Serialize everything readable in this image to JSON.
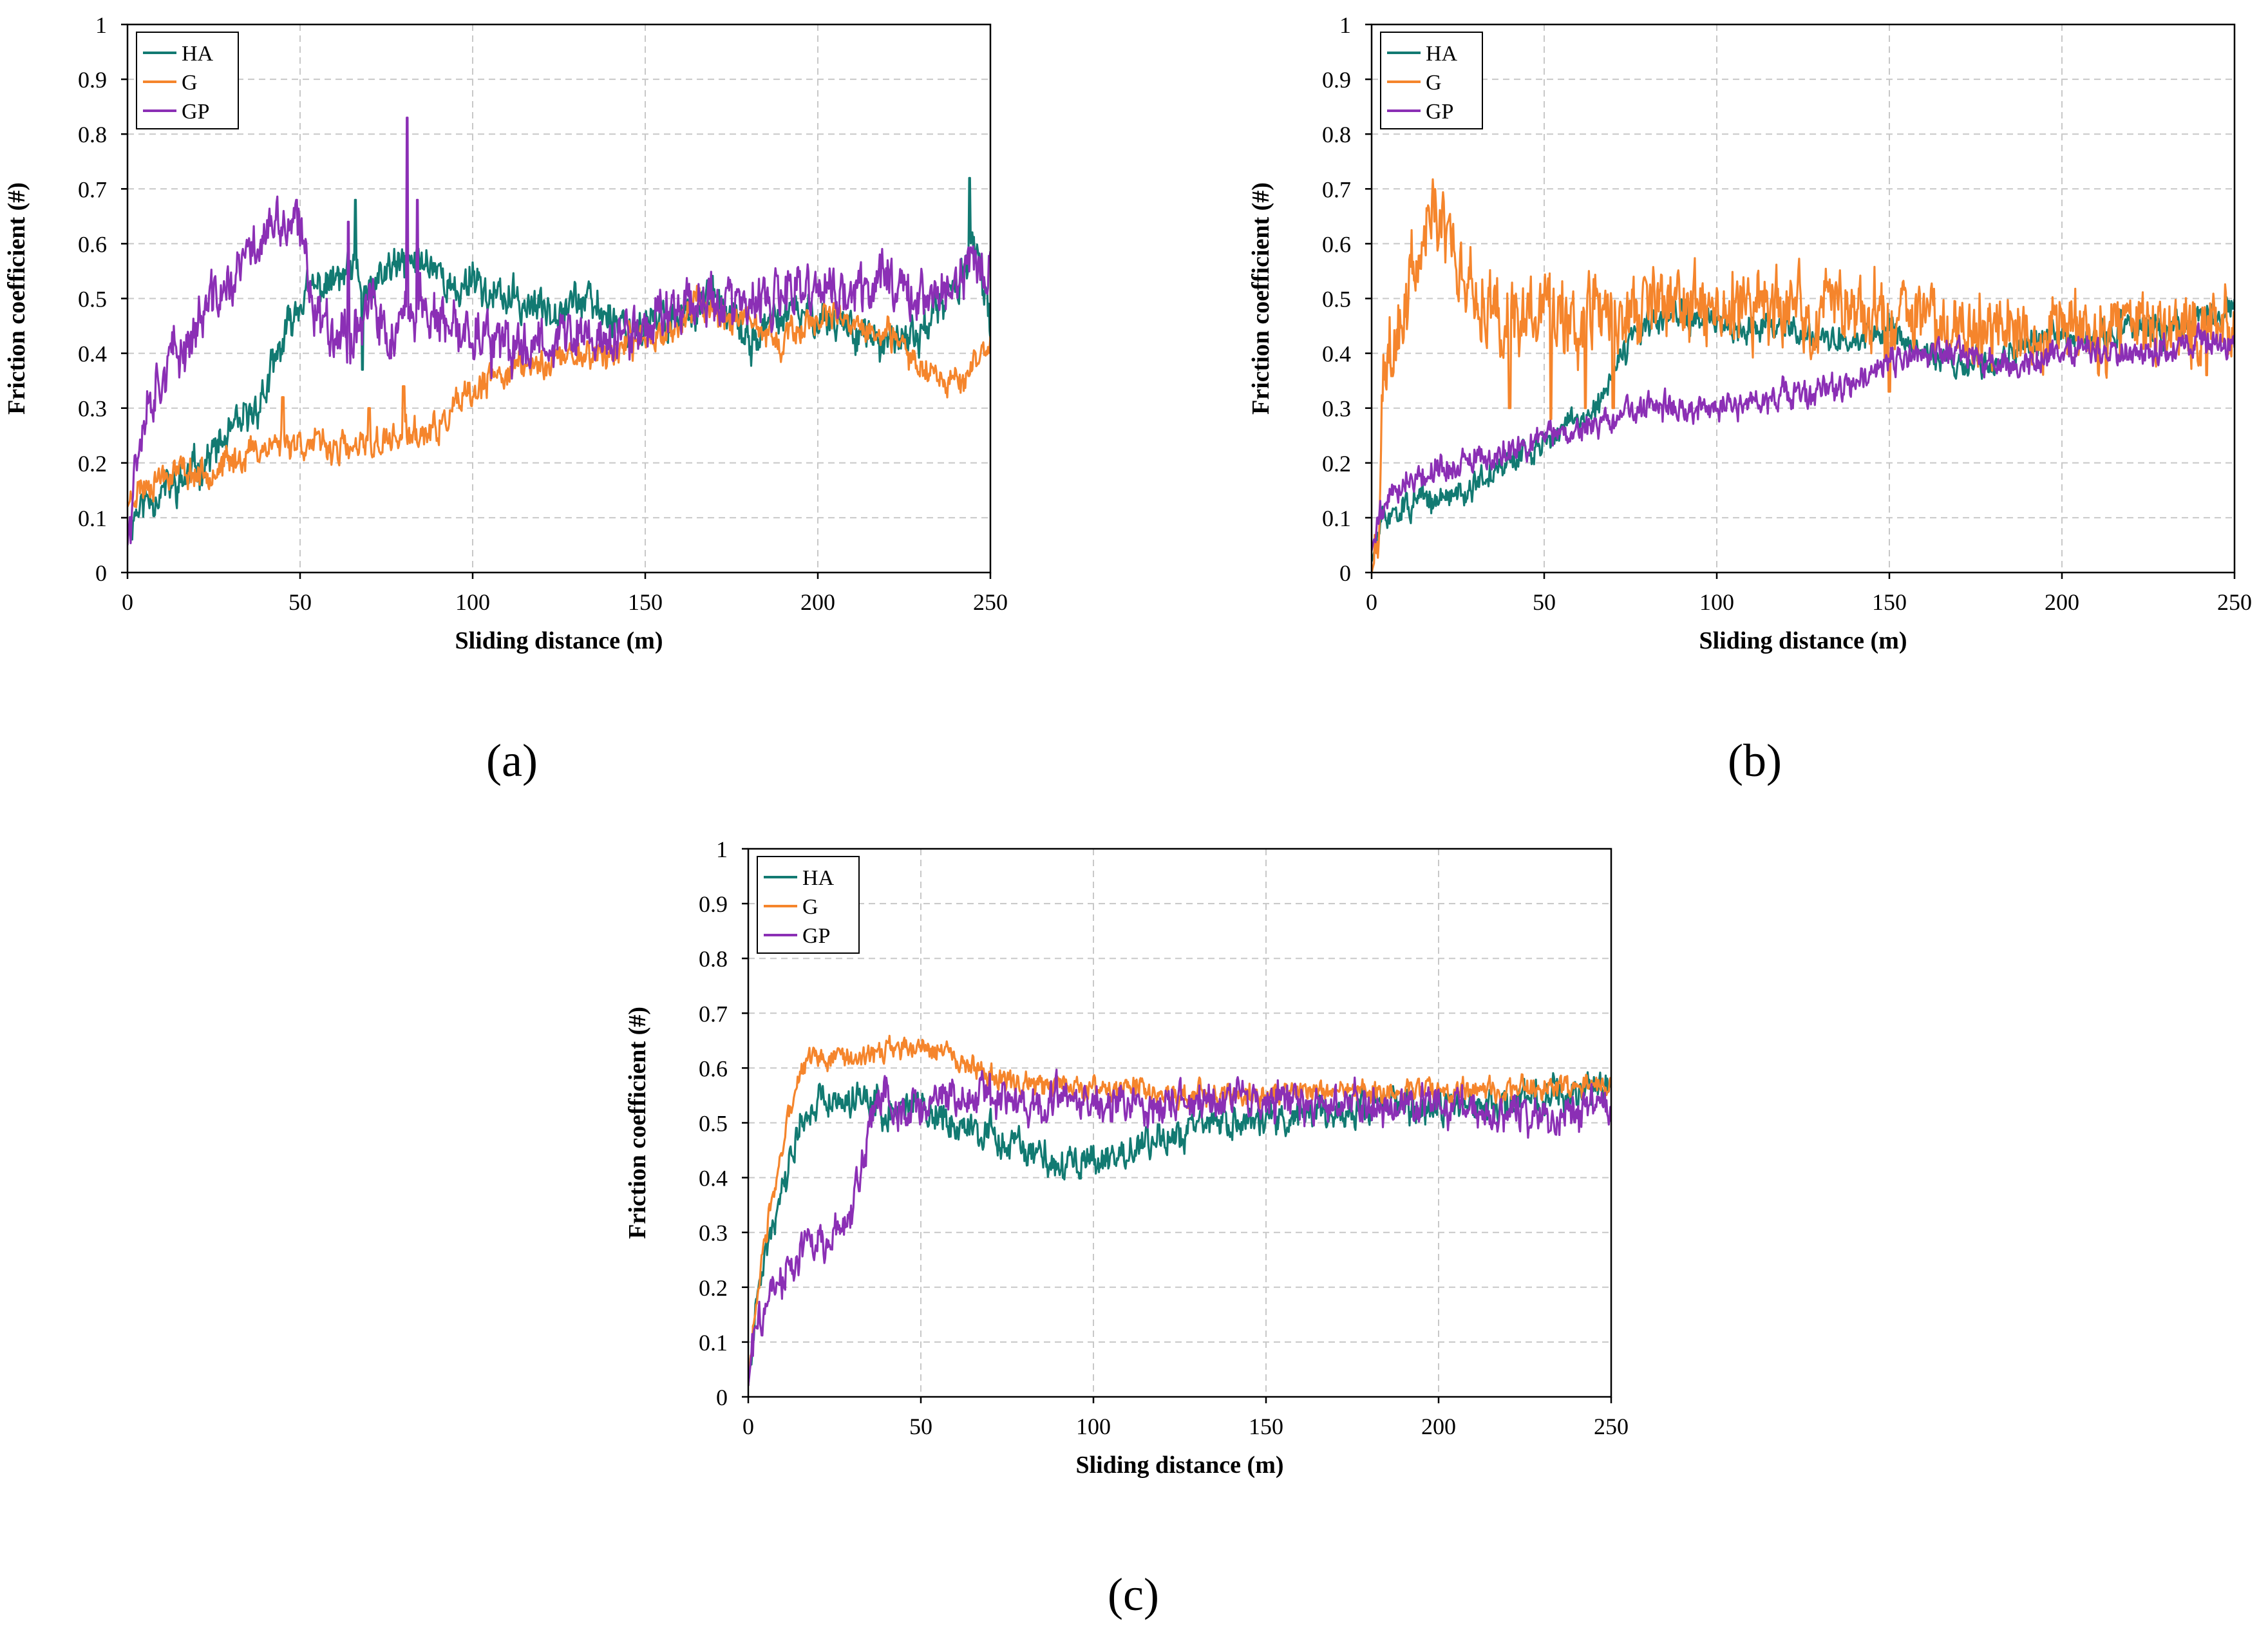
{
  "colors": {
    "HA": "#127a72",
    "G": "#f5852c",
    "GP": "#8b2fb5"
  },
  "chart_data": [
    {
      "id": "a",
      "type": "line",
      "caption": "(a)",
      "xlabel": "Sliding distance (m)",
      "ylabel": "Friction coefficient (#)",
      "xlim": [
        0,
        250
      ],
      "ylim": [
        0,
        1
      ],
      "xticks": [
        "0",
        "50",
        "100",
        "150",
        "200",
        "250"
      ],
      "yticks": [
        "0",
        "0.1",
        "0.2",
        "0.3",
        "0.4",
        "0.5",
        "0.6",
        "0.7",
        "0.8",
        "0.9",
        "1"
      ],
      "grid": true,
      "legend": "top-left",
      "series": [
        {
          "name": "HA",
          "color_key": "HA",
          "noise": 0.025,
          "seed": 11,
          "x": [
            0,
            2,
            5,
            10,
            15,
            20,
            25,
            30,
            35,
            40,
            45,
            50,
            55,
            60,
            65,
            70,
            75,
            80,
            85,
            90,
            95,
            100,
            105,
            110,
            120,
            130,
            140,
            145,
            150,
            160,
            170,
            180,
            190,
            200,
            210,
            220,
            230,
            240,
            245,
            250
          ],
          "y": [
            0.08,
            0.11,
            0.13,
            0.15,
            0.16,
            0.19,
            0.22,
            0.25,
            0.28,
            0.33,
            0.42,
            0.5,
            0.52,
            0.53,
            0.55,
            0.5,
            0.55,
            0.56,
            0.57,
            0.56,
            0.5,
            0.55,
            0.5,
            0.5,
            0.48,
            0.5,
            0.47,
            0.45,
            0.45,
            0.47,
            0.5,
            0.42,
            0.47,
            0.47,
            0.45,
            0.41,
            0.44,
            0.52,
            0.6,
            0.45
          ],
          "spikes": [
            [
              66,
              0.68
            ],
            [
              68,
              0.37
            ],
            [
              244,
              0.72
            ]
          ]
        },
        {
          "name": "G",
          "color_key": "G",
          "noise": 0.02,
          "seed": 23,
          "x": [
            0,
            2,
            5,
            10,
            15,
            20,
            25,
            30,
            35,
            40,
            45,
            50,
            55,
            60,
            65,
            70,
            75,
            80,
            85,
            90,
            95,
            100,
            105,
            110,
            120,
            130,
            140,
            150,
            160,
            165,
            170,
            180,
            190,
            200,
            210,
            220,
            230,
            240,
            245,
            250
          ],
          "y": [
            0.12,
            0.15,
            0.16,
            0.18,
            0.19,
            0.18,
            0.19,
            0.2,
            0.22,
            0.23,
            0.24,
            0.24,
            0.23,
            0.23,
            0.22,
            0.23,
            0.24,
            0.25,
            0.25,
            0.26,
            0.3,
            0.32,
            0.35,
            0.37,
            0.38,
            0.4,
            0.4,
            0.43,
            0.45,
            0.5,
            0.48,
            0.45,
            0.42,
            0.47,
            0.45,
            0.43,
            0.38,
            0.35,
            0.37,
            0.42
          ],
          "spikes": [
            [
              45,
              0.32
            ],
            [
              70,
              0.3
            ],
            [
              80,
              0.34
            ]
          ]
        },
        {
          "name": "GP",
          "color_key": "GP",
          "noise": 0.035,
          "seed": 37,
          "x": [
            0,
            2,
            5,
            10,
            15,
            20,
            25,
            30,
            35,
            40,
            45,
            50,
            55,
            60,
            65,
            70,
            75,
            80,
            85,
            90,
            95,
            100,
            105,
            110,
            120,
            130,
            140,
            150,
            160,
            170,
            180,
            190,
            200,
            210,
            220,
            230,
            240,
            245,
            250
          ],
          "y": [
            0.05,
            0.2,
            0.3,
            0.37,
            0.4,
            0.45,
            0.5,
            0.52,
            0.58,
            0.62,
            0.63,
            0.62,
            0.47,
            0.45,
            0.43,
            0.5,
            0.42,
            0.45,
            0.5,
            0.45,
            0.43,
            0.45,
            0.42,
            0.4,
            0.43,
            0.43,
            0.42,
            0.45,
            0.5,
            0.5,
            0.48,
            0.5,
            0.52,
            0.5,
            0.55,
            0.5,
            0.52,
            0.57,
            0.55
          ],
          "spikes": [
            [
              49,
              0.68
            ],
            [
              81,
              0.83
            ],
            [
              84,
              0.68
            ],
            [
              64,
              0.64
            ]
          ]
        }
      ]
    },
    {
      "id": "b",
      "type": "line",
      "caption": "(b)",
      "xlabel": "Sliding distance (m)",
      "ylabel": "Friction coefficient (#)",
      "xlim": [
        0,
        250
      ],
      "ylim": [
        0,
        1
      ],
      "xticks": [
        "0",
        "50",
        "100",
        "150",
        "200",
        "250"
      ],
      "yticks": [
        "0",
        "0.1",
        "0.2",
        "0.3",
        "0.4",
        "0.5",
        "0.6",
        "0.7",
        "0.8",
        "0.9",
        "1"
      ],
      "grid": true,
      "legend": "top-left",
      "series": [
        {
          "name": "HA",
          "color_key": "HA",
          "noise": 0.018,
          "seed": 51,
          "x": [
            0,
            3,
            6,
            10,
            15,
            20,
            25,
            30,
            40,
            50,
            60,
            65,
            70,
            75,
            80,
            90,
            100,
            110,
            120,
            130,
            140,
            150,
            160,
            170,
            180,
            190,
            200,
            210,
            220,
            230,
            240,
            250
          ],
          "y": [
            0.02,
            0.09,
            0.11,
            0.12,
            0.13,
            0.13,
            0.15,
            0.16,
            0.2,
            0.24,
            0.28,
            0.3,
            0.36,
            0.42,
            0.45,
            0.47,
            0.45,
            0.45,
            0.45,
            0.43,
            0.42,
            0.45,
            0.4,
            0.38,
            0.38,
            0.42,
            0.43,
            0.42,
            0.45,
            0.44,
            0.46,
            0.48
          ],
          "spikes": []
        },
        {
          "name": "G",
          "color_key": "G",
          "noise": 0.05,
          "seed": 63,
          "x": [
            0,
            2,
            3,
            5,
            8,
            12,
            16,
            19,
            22,
            25,
            30,
            35,
            40,
            50,
            60,
            70,
            80,
            90,
            100,
            110,
            120,
            130,
            140,
            150,
            160,
            170,
            180,
            190,
            200,
            210,
            220,
            230,
            240,
            250
          ],
          "y": [
            0.0,
            0.05,
            0.35,
            0.42,
            0.45,
            0.55,
            0.63,
            0.67,
            0.63,
            0.56,
            0.52,
            0.5,
            0.48,
            0.48,
            0.48,
            0.47,
            0.48,
            0.48,
            0.48,
            0.49,
            0.48,
            0.47,
            0.48,
            0.46,
            0.46,
            0.46,
            0.45,
            0.45,
            0.45,
            0.44,
            0.45,
            0.45,
            0.44,
            0.46
          ],
          "spikes": [
            [
              40,
              0.3
            ],
            [
              52,
              0.28
            ],
            [
              62,
              0.3
            ],
            [
              70,
              0.3
            ],
            [
              150,
              0.33
            ],
            [
              242,
              0.36
            ]
          ]
        },
        {
          "name": "GP",
          "color_key": "GP",
          "noise": 0.018,
          "seed": 79,
          "x": [
            0,
            2,
            5,
            10,
            20,
            30,
            40,
            50,
            60,
            70,
            80,
            90,
            100,
            110,
            120,
            130,
            140,
            150,
            160,
            170,
            180,
            190,
            200,
            210,
            220,
            230,
            240,
            250
          ],
          "y": [
            0.04,
            0.1,
            0.14,
            0.17,
            0.19,
            0.2,
            0.22,
            0.25,
            0.26,
            0.28,
            0.3,
            0.3,
            0.3,
            0.31,
            0.32,
            0.33,
            0.34,
            0.38,
            0.4,
            0.4,
            0.38,
            0.38,
            0.4,
            0.41,
            0.4,
            0.41,
            0.42,
            0.42
          ],
          "spikes": []
        }
      ]
    },
    {
      "id": "c",
      "type": "line",
      "caption": "(c)",
      "xlabel": "Sliding distance (m)",
      "ylabel": "Friction coefficient (#)",
      "xlim": [
        0,
        250
      ],
      "ylim": [
        0,
        1
      ],
      "xticks": [
        "0",
        "50",
        "100",
        "150",
        "200",
        "250"
      ],
      "yticks": [
        "0",
        "0.1",
        "0.2",
        "0.3",
        "0.4",
        "0.5",
        "0.6",
        "0.7",
        "0.8",
        "0.9",
        "1"
      ],
      "grid": true,
      "legend": "top-left",
      "series": [
        {
          "name": "HA",
          "color_key": "HA",
          "noise": 0.022,
          "seed": 91,
          "x": [
            0,
            1,
            3,
            6,
            9,
            12,
            15,
            20,
            30,
            40,
            50,
            60,
            70,
            80,
            90,
            100,
            110,
            120,
            130,
            140,
            150,
            160,
            170,
            180,
            190,
            200,
            210,
            220,
            230,
            240,
            250
          ],
          "y": [
            0.02,
            0.1,
            0.2,
            0.3,
            0.37,
            0.43,
            0.5,
            0.54,
            0.55,
            0.52,
            0.53,
            0.5,
            0.48,
            0.45,
            0.42,
            0.43,
            0.45,
            0.47,
            0.5,
            0.5,
            0.5,
            0.52,
            0.52,
            0.53,
            0.53,
            0.53,
            0.53,
            0.54,
            0.55,
            0.56,
            0.57
          ],
          "spikes": []
        },
        {
          "name": "G",
          "color_key": "G",
          "noise": 0.015,
          "seed": 103,
          "x": [
            0,
            1,
            3,
            6,
            9,
            12,
            15,
            20,
            30,
            40,
            50,
            60,
            70,
            80,
            90,
            100,
            110,
            120,
            140,
            160,
            180,
            200,
            220,
            240,
            250
          ],
          "y": [
            0.02,
            0.1,
            0.2,
            0.32,
            0.42,
            0.52,
            0.6,
            0.62,
            0.62,
            0.63,
            0.64,
            0.62,
            0.58,
            0.57,
            0.57,
            0.56,
            0.56,
            0.55,
            0.55,
            0.56,
            0.56,
            0.56,
            0.56,
            0.56,
            0.57
          ],
          "spikes": []
        },
        {
          "name": "GP",
          "color_key": "GP",
          "noise": 0.025,
          "seed": 117,
          "x": [
            0,
            1,
            3,
            6,
            10,
            15,
            20,
            25,
            30,
            33,
            36,
            40,
            45,
            50,
            60,
            70,
            80,
            90,
            100,
            120,
            140,
            160,
            180,
            200,
            220,
            240,
            250
          ],
          "y": [
            0.02,
            0.08,
            0.14,
            0.18,
            0.22,
            0.26,
            0.28,
            0.3,
            0.32,
            0.42,
            0.52,
            0.55,
            0.53,
            0.52,
            0.55,
            0.55,
            0.54,
            0.55,
            0.54,
            0.53,
            0.54,
            0.54,
            0.53,
            0.53,
            0.52,
            0.52,
            0.53
          ],
          "spikes": []
        }
      ]
    }
  ]
}
